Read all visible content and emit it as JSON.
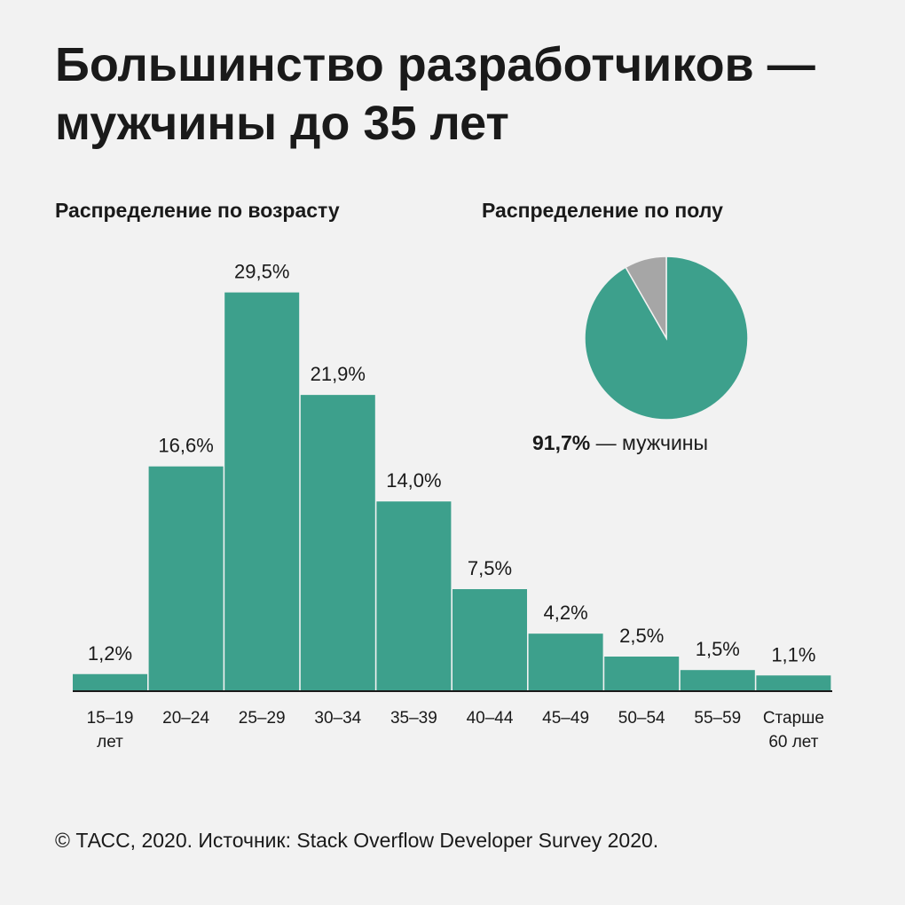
{
  "title": {
    "line1": "Большинство разработчиков —",
    "line2": "мужчины до 35 лет"
  },
  "footer": "© ТАСС, 2020. Источник: Stack Overflow Developer Survey 2020.",
  "chart_data": [
    {
      "type": "bar",
      "title": "Распределение по возрасту",
      "categories": [
        [
          "15–19",
          "лет"
        ],
        [
          "20–24"
        ],
        [
          "25–29"
        ],
        [
          "30–34"
        ],
        [
          "35–39"
        ],
        [
          "40–44"
        ],
        [
          "45–49"
        ],
        [
          "50–54"
        ],
        [
          "55–59"
        ],
        [
          "Старше",
          "60 лет"
        ]
      ],
      "values": [
        1.2,
        16.6,
        29.5,
        21.9,
        14.0,
        7.5,
        4.2,
        2.5,
        1.5,
        1.1
      ],
      "value_labels": [
        "1,2%",
        "16,6%",
        "29,5%",
        "21,9%",
        "14,0%",
        "7,5%",
        "4,2%",
        "2,5%",
        "1,5%",
        "1,1%"
      ],
      "ylim": [
        0,
        30
      ],
      "grid": false,
      "bar_color": "#3da08c"
    },
    {
      "type": "pie",
      "title": "Распределение по полу",
      "slices": [
        {
          "name": "мужчины",
          "value": 91.7,
          "label": "91,7%",
          "color": "#3da08c"
        },
        {
          "value": 8.3,
          "color": "#a6a6a6"
        }
      ]
    }
  ]
}
